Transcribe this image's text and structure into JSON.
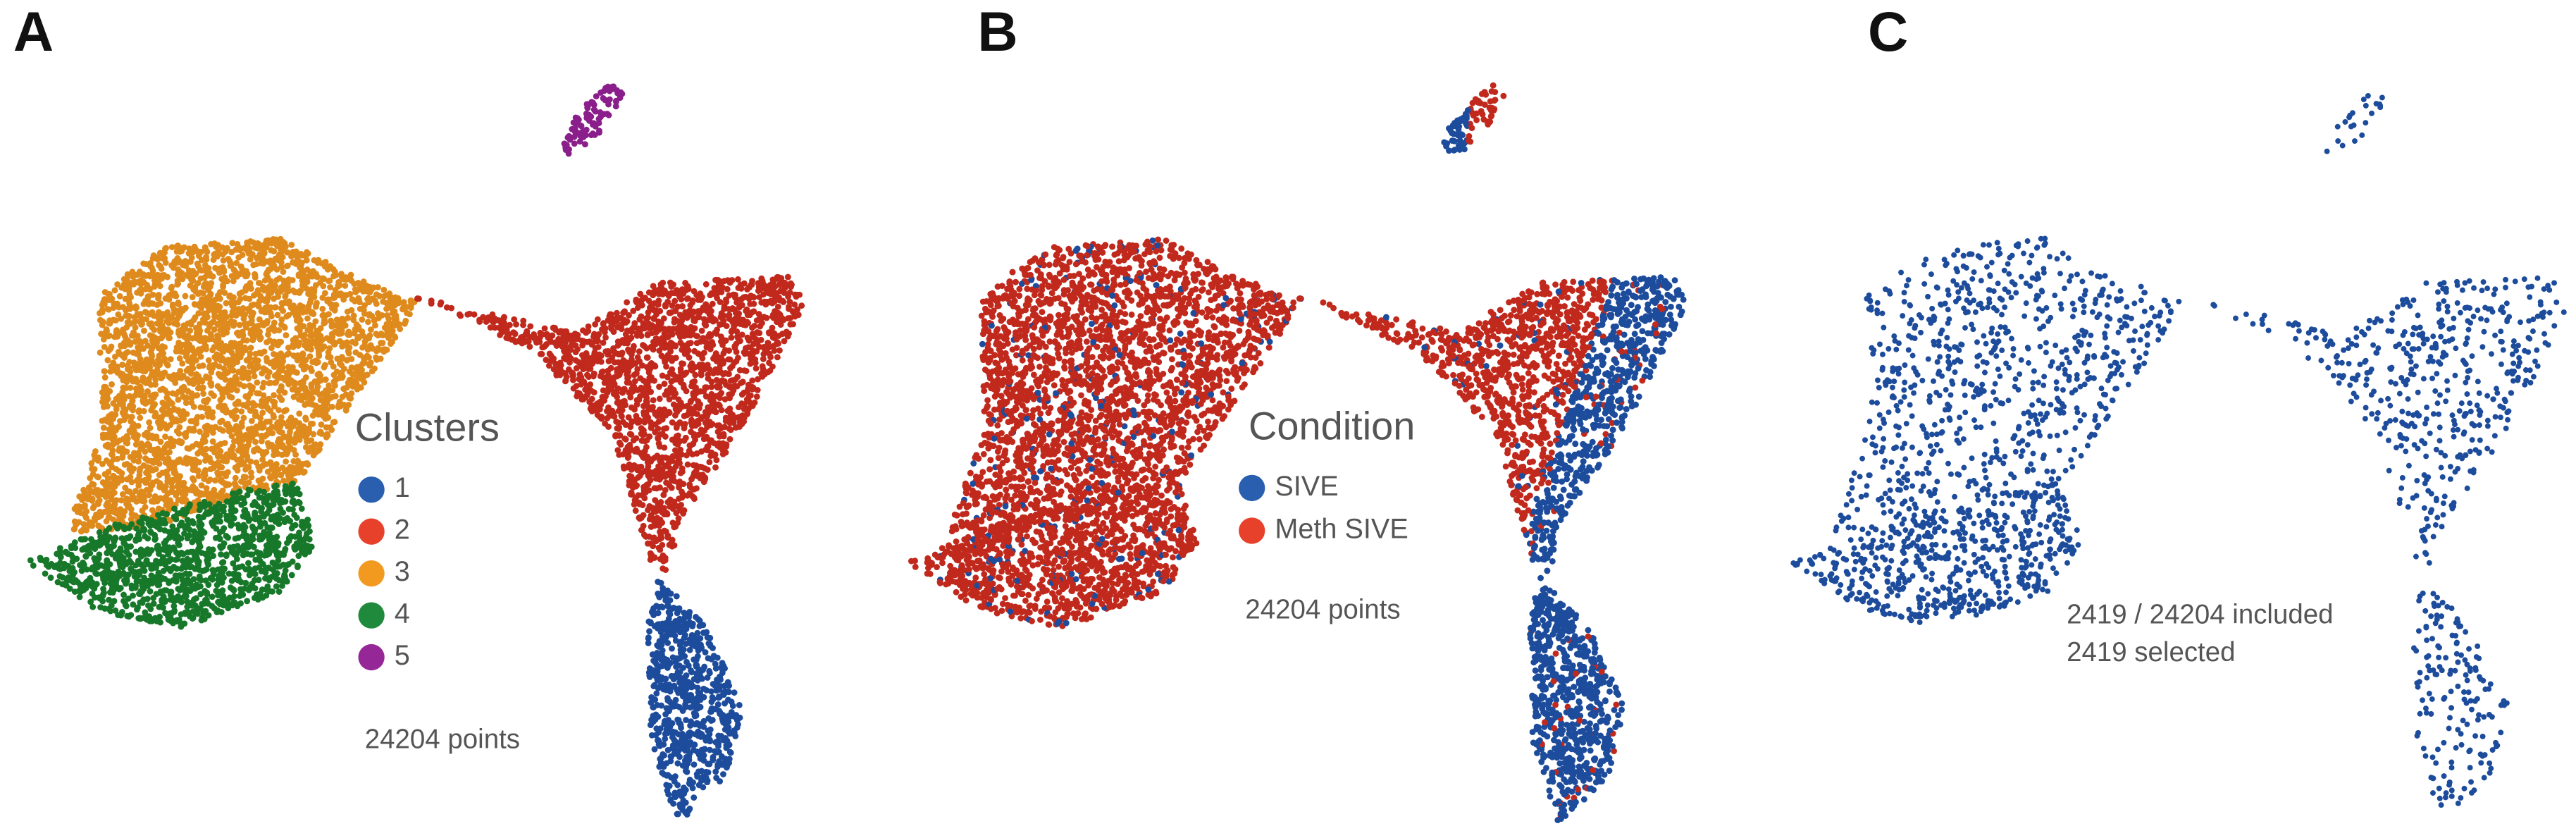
{
  "panels": [
    {
      "label": "A",
      "legend": {
        "title": "Clusters",
        "items": [
          {
            "label": "1",
            "color": "#2a5fb0"
          },
          {
            "label": "2",
            "color": "#e8412b"
          },
          {
            "label": "3",
            "color": "#f29a1f"
          },
          {
            "label": "4",
            "color": "#1f8a3b"
          },
          {
            "label": "5",
            "color": "#952896"
          }
        ]
      },
      "notes": [
        "24204 points"
      ]
    },
    {
      "label": "B",
      "legend": {
        "title": "Condition",
        "items": [
          {
            "label": "SIVE",
            "color": "#2a5fb0"
          },
          {
            "label": "Meth SIVE",
            "color": "#e8412b"
          }
        ]
      },
      "notes": [
        "24204 points"
      ]
    },
    {
      "label": "C",
      "notes": [
        "2419 / 24204 included",
        "2419 selected"
      ]
    }
  ]
}
